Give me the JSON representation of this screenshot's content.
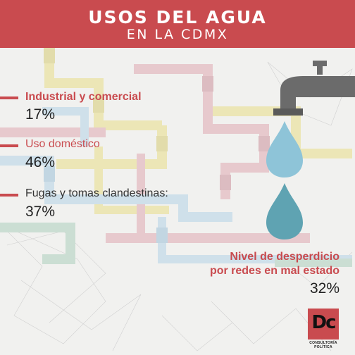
{
  "header": {
    "title": "USOS DEL AGUA",
    "subtitle": "EN LA CDMX"
  },
  "items": [
    {
      "label": "Industrial y comercial",
      "value": "17%"
    },
    {
      "label": "Uso doméstico",
      "value": "46%"
    },
    {
      "label": "Fugas y tomas clandestinas:",
      "value": "37%"
    }
  ],
  "waste": {
    "line1": "Nivel de desperdicio",
    "line2": "por redes en mal estado",
    "value": "32%"
  },
  "logo": {
    "letters": "Dc",
    "tagline": "CONSULTORÍA POLÍTICA"
  },
  "colors": {
    "accent": "#c94b4f",
    "background": "#f1f1ef",
    "drop_light": "#8ec4d8",
    "drop_dark": "#5fa3b2",
    "faucet": "#6b6b6b"
  },
  "icons": [
    "faucet-icon",
    "water-drop-icon",
    "water-drop-icon"
  ]
}
